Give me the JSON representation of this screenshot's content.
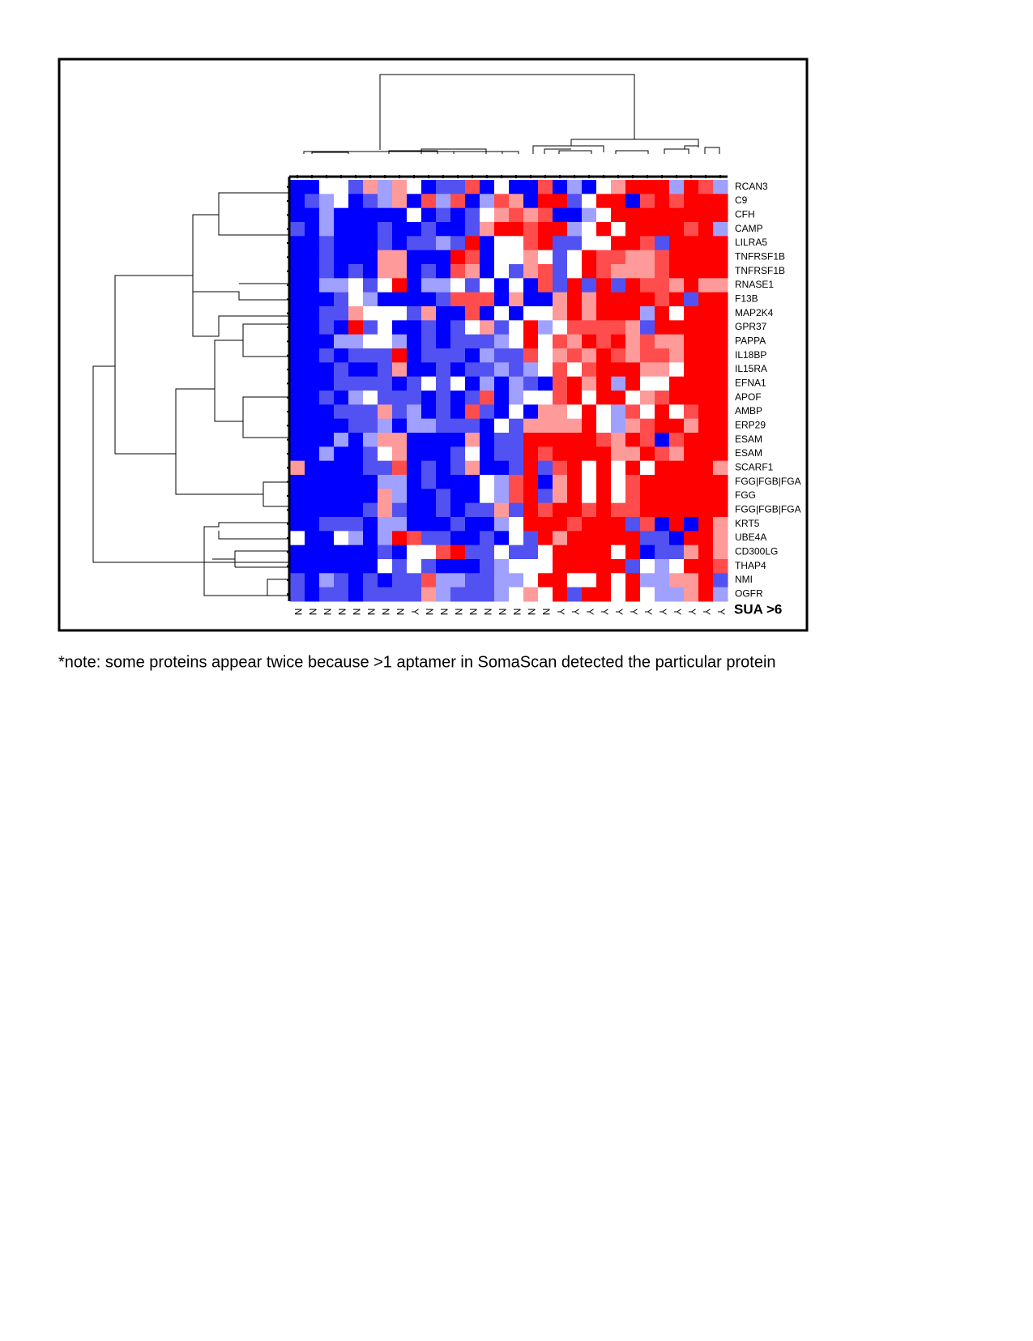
{
  "chart_data": {
    "type": "heatmap",
    "columns": [
      "N",
      "N",
      "N",
      "N",
      "N",
      "N",
      "N",
      "N",
      "Y",
      "N",
      "N",
      "N",
      "N",
      "N",
      "N",
      "N",
      "N",
      "N",
      "Y",
      "Y",
      "Y",
      "Y",
      "Y",
      "Y",
      "Y",
      "Y",
      "Y",
      "Y",
      "Y",
      "Y"
    ],
    "rows": [
      "RCAN3",
      "C9",
      "CFH",
      "CAMP",
      "LILRA5",
      "TNFRSF1B",
      "TNFRSF1B",
      "RNASE1",
      "F13B",
      "MAP2K4",
      "GPR37",
      "PAPPA",
      "IL18BP",
      "IL15RA",
      "EFNA1",
      "APOF",
      "AMBP",
      "ERP29",
      "ESAM",
      "ESAM",
      "SCARF1",
      "FGG|FGB|FGA",
      "FGG",
      "FGG|FGB|FGA",
      "KRT5",
      "UBE4A",
      "CD300LG",
      "THAP4",
      "NMI",
      "OGFR"
    ],
    "x_axis_label": "SUA >6",
    "zlim": [
      -3,
      3
    ],
    "colors": [
      "#0000ff",
      "#5252f2",
      "#a0a0ff",
      "#ffffff",
      "#ff9a9a",
      "#ff4d4d",
      "#ff0000"
    ],
    "values": [
      [
        -3,
        -3,
        0,
        0,
        -2,
        1,
        -1,
        1,
        0,
        -3,
        -2,
        -2,
        2,
        -3,
        0,
        -3,
        -3,
        2,
        -3,
        -1,
        -3,
        0,
        1,
        3,
        3,
        3,
        -1,
        3,
        2,
        -1
      ],
      [
        -3,
        -2,
        -1,
        0,
        -3,
        -2,
        -1,
        1,
        -3,
        2,
        -1,
        2,
        -3,
        -1,
        2,
        1,
        -3,
        3,
        3,
        -2,
        0,
        3,
        3,
        -3,
        2,
        3,
        2,
        3,
        3,
        3
      ],
      [
        -3,
        -3,
        -1,
        -3,
        -3,
        -3,
        -3,
        -3,
        0,
        -3,
        -2,
        -3,
        -2,
        0,
        1,
        2,
        1,
        2,
        -3,
        -3,
        -1,
        0,
        3,
        3,
        3,
        3,
        3,
        3,
        3,
        3
      ],
      [
        -2,
        -3,
        -1,
        -3,
        -3,
        -3,
        -2,
        -3,
        -3,
        -2,
        -3,
        -3,
        -2,
        1,
        3,
        3,
        2,
        3,
        3,
        -1,
        0,
        3,
        0,
        3,
        3,
        3,
        3,
        2,
        3,
        -1
      ],
      [
        -3,
        -3,
        -2,
        -3,
        -3,
        -3,
        -2,
        -3,
        -2,
        -2,
        -1,
        -2,
        3,
        -3,
        0,
        0,
        2,
        3,
        -2,
        -2,
        0,
        0,
        3,
        3,
        2,
        -2,
        3,
        3,
        3,
        3
      ],
      [
        -3,
        -3,
        -2,
        -3,
        -3,
        -3,
        1,
        1,
        -3,
        -3,
        -3,
        3,
        2,
        -3,
        0,
        0,
        1,
        0,
        -2,
        0,
        3,
        2,
        2,
        1,
        1,
        2,
        3,
        3,
        3,
        3
      ],
      [
        -3,
        -3,
        -2,
        -3,
        -2,
        -3,
        1,
        1,
        -3,
        -2,
        -3,
        2,
        1,
        -3,
        0,
        -2,
        1,
        2,
        -2,
        0,
        3,
        2,
        1,
        1,
        1,
        2,
        3,
        3,
        3,
        3
      ],
      [
        -3,
        -3,
        -1,
        -1,
        0,
        -2,
        0,
        3,
        -3,
        -1,
        -1,
        0,
        -2,
        0,
        -3,
        0,
        -3,
        2,
        -2,
        3,
        -2,
        3,
        -2,
        3,
        2,
        2,
        1,
        3,
        1,
        1
      ],
      [
        -3,
        -3,
        -3,
        -2,
        0,
        -1,
        -3,
        -3,
        -3,
        -3,
        -2,
        2,
        2,
        2,
        -3,
        1,
        -3,
        -3,
        1,
        3,
        1,
        3,
        3,
        3,
        3,
        2,
        3,
        -2,
        3,
        3
      ],
      [
        -3,
        -3,
        -2,
        -2,
        1,
        0,
        0,
        0,
        -2,
        1,
        -3,
        -3,
        2,
        -3,
        0,
        -3,
        0,
        0,
        1,
        3,
        1,
        3,
        3,
        3,
        -1,
        3,
        0,
        3,
        3,
        3
      ],
      [
        -3,
        -3,
        -2,
        -3,
        3,
        -2,
        0,
        -3,
        -3,
        -2,
        -3,
        -2,
        0,
        1,
        -2,
        0,
        3,
        -1,
        0,
        2,
        2,
        2,
        2,
        1,
        -2,
        3,
        3,
        3,
        3,
        3
      ],
      [
        -3,
        -3,
        -3,
        -1,
        -1,
        0,
        0,
        -1,
        -3,
        -2,
        -3,
        -2,
        -2,
        -2,
        -1,
        0,
        3,
        0,
        2,
        1,
        3,
        2,
        3,
        1,
        2,
        1,
        1,
        3,
        3,
        3
      ],
      [
        -3,
        -3,
        -2,
        -3,
        -2,
        -2,
        -2,
        3,
        -3,
        -2,
        -2,
        -2,
        -3,
        -1,
        -2,
        -2,
        2,
        0,
        1,
        2,
        1,
        3,
        2,
        1,
        2,
        2,
        1,
        3,
        3,
        3
      ],
      [
        -3,
        -3,
        -3,
        -2,
        -3,
        -3,
        -2,
        1,
        -3,
        -3,
        -2,
        -3,
        -2,
        -2,
        -1,
        -2,
        -1,
        0,
        2,
        0,
        2,
        3,
        3,
        3,
        1,
        1,
        0,
        3,
        3,
        3
      ],
      [
        -3,
        -3,
        -3,
        -2,
        -2,
        -2,
        -2,
        -3,
        -2,
        0,
        -2,
        0,
        -3,
        -1,
        -3,
        -1,
        -2,
        -3,
        2,
        3,
        1,
        3,
        -1,
        3,
        0,
        0,
        3,
        3,
        3,
        3
      ],
      [
        -3,
        -3,
        -2,
        -3,
        -1,
        0,
        -2,
        -2,
        -2,
        -3,
        -2,
        -3,
        -2,
        2,
        -3,
        -1,
        0,
        0,
        2,
        3,
        0,
        3,
        3,
        0,
        1,
        2,
        3,
        3,
        3,
        3
      ],
      [
        -3,
        -3,
        -3,
        -2,
        -2,
        -2,
        1,
        -2,
        -1,
        -3,
        -2,
        -3,
        2,
        -2,
        -3,
        0,
        -3,
        1,
        1,
        0,
        3,
        0,
        -1,
        2,
        0,
        3,
        0,
        2,
        3,
        3
      ],
      [
        -3,
        -3,
        -3,
        -3,
        -2,
        -2,
        -1,
        -3,
        -1,
        -1,
        -2,
        -2,
        -2,
        -3,
        0,
        -2,
        1,
        1,
        1,
        1,
        3,
        0,
        -1,
        1,
        2,
        3,
        3,
        1,
        3,
        3
      ],
      [
        -3,
        -3,
        -3,
        -1,
        -3,
        -1,
        1,
        1,
        -3,
        -3,
        -3,
        -3,
        1,
        -3,
        -2,
        -2,
        3,
        3,
        3,
        3,
        3,
        2,
        1,
        3,
        2,
        -3,
        2,
        3,
        3,
        3
      ],
      [
        -3,
        -3,
        -1,
        -3,
        -3,
        -2,
        0,
        1,
        -3,
        -3,
        -3,
        -2,
        0,
        -3,
        -2,
        -2,
        3,
        2,
        3,
        3,
        3,
        3,
        1,
        1,
        3,
        2,
        1,
        3,
        3,
        3
      ],
      [
        1,
        -3,
        -3,
        -3,
        -3,
        -2,
        -2,
        2,
        -3,
        -2,
        -3,
        -2,
        1,
        -3,
        -3,
        -2,
        3,
        -2,
        2,
        3,
        0,
        3,
        0,
        3,
        0,
        3,
        3,
        3,
        3,
        1
      ],
      [
        -3,
        -3,
        -3,
        -3,
        -3,
        -3,
        -1,
        -1,
        -3,
        -2,
        -3,
        -3,
        -3,
        0,
        -1,
        2,
        3,
        -3,
        1,
        3,
        0,
        3,
        0,
        2,
        3,
        3,
        3,
        3,
        3,
        3
      ],
      [
        -3,
        -3,
        -3,
        -3,
        -3,
        -3,
        1,
        -1,
        -3,
        -3,
        -2,
        -3,
        -3,
        0,
        -1,
        2,
        3,
        -2,
        1,
        3,
        0,
        3,
        0,
        2,
        3,
        3,
        3,
        3,
        3,
        3
      ],
      [
        -3,
        -3,
        -3,
        -3,
        -3,
        -2,
        1,
        -2,
        -3,
        -3,
        -2,
        -3,
        -2,
        -2,
        1,
        -2,
        3,
        2,
        3,
        3,
        2,
        3,
        2,
        2,
        3,
        3,
        3,
        3,
        3,
        3
      ],
      [
        -3,
        -3,
        -2,
        -2,
        -2,
        -3,
        -1,
        -1,
        -3,
        -3,
        -3,
        -2,
        -3,
        -3,
        -1,
        0,
        3,
        3,
        3,
        2,
        3,
        3,
        3,
        -2,
        2,
        -3,
        3,
        -3,
        3,
        1
      ],
      [
        0,
        -3,
        -3,
        0,
        -1,
        -3,
        -1,
        3,
        2,
        -2,
        -2,
        -3,
        -3,
        -2,
        -3,
        0,
        -2,
        3,
        1,
        3,
        3,
        3,
        3,
        3,
        -2,
        -2,
        -3,
        3,
        3,
        1
      ],
      [
        -3,
        -3,
        -3,
        -3,
        -3,
        -3,
        -2,
        -3,
        0,
        0,
        2,
        3,
        -2,
        -2,
        0,
        -2,
        -2,
        0,
        3,
        3,
        3,
        3,
        0,
        3,
        -3,
        -2,
        -2,
        1,
        3,
        1
      ],
      [
        -3,
        -3,
        -3,
        -3,
        -3,
        -3,
        0,
        -2,
        0,
        -2,
        -3,
        -3,
        -3,
        -2,
        -1,
        0,
        0,
        0,
        3,
        3,
        3,
        3,
        3,
        -2,
        0,
        -1,
        0,
        3,
        3,
        2
      ],
      [
        -2,
        -3,
        -1,
        -2,
        -3,
        -2,
        -3,
        -2,
        -2,
        2,
        -1,
        -1,
        -2,
        -2,
        -1,
        -1,
        0,
        3,
        3,
        0,
        0,
        3,
        0,
        3,
        -1,
        -1,
        1,
        1,
        3,
        -2
      ],
      [
        -2,
        -3,
        -2,
        -2,
        -3,
        -2,
        -2,
        -2,
        -2,
        1,
        -1,
        -2,
        -2,
        -2,
        -1,
        0,
        1,
        0,
        3,
        -2,
        3,
        3,
        0,
        3,
        0,
        -1,
        -1,
        1,
        3,
        -1
      ]
    ]
  },
  "note": "*note: some proteins appear twice because >1 aptamer in SomaScan detected the particular protein"
}
